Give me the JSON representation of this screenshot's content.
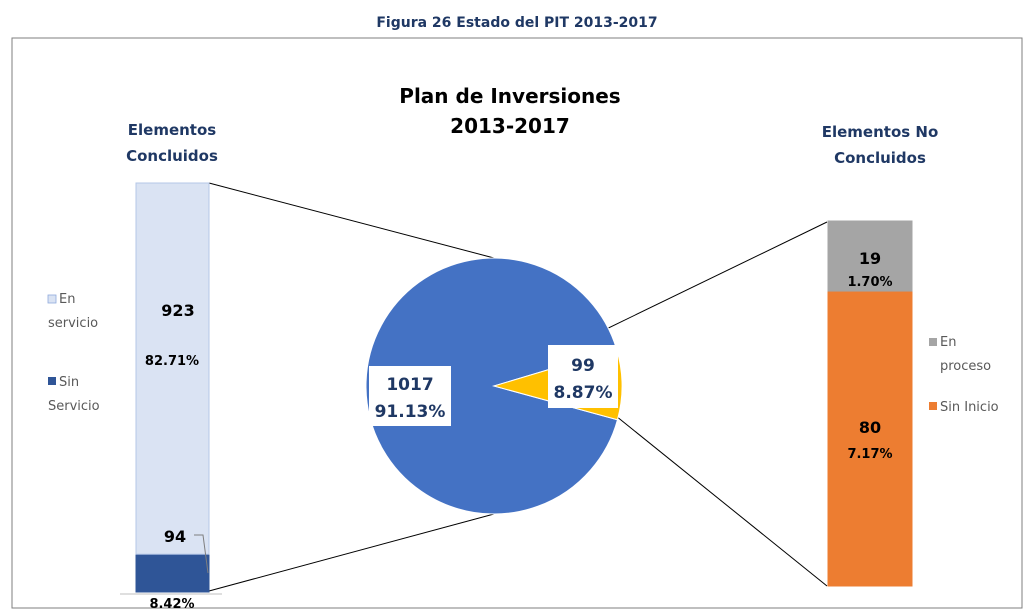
{
  "figure_caption": "Figura 26 Estado del PIT 2013-2017",
  "colors": {
    "pie_main": "#4472C4",
    "pie_slice": "#FFC000",
    "en_servicio": "#DAE3F3",
    "sin_servicio": "#2F5597",
    "en_proceso": "#A5A5A5",
    "sin_inicio": "#ED7D31",
    "title_text": "#000000",
    "sub_title_text": "#1F3864",
    "label_text": "#1F3864"
  },
  "chart_data": [
    {
      "type": "pie",
      "title_lines": [
        "Plan de Inversiones",
        "2013-2017"
      ],
      "slices": [
        {
          "value": 1017,
          "percent_label": "91.13%",
          "value_label": "1017",
          "color": "#4472C4"
        },
        {
          "value": 99,
          "percent_label": "8.87%",
          "value_label": "99",
          "color": "#FFC000"
        }
      ]
    },
    {
      "type": "bar",
      "stacked": true,
      "title_lines": [
        "Elementos",
        "Concluidos"
      ],
      "legend": [
        "En servicio",
        "Sin Servicio"
      ],
      "legend_lines": [
        [
          "En",
          "servicio"
        ],
        [
          "Sin",
          "Servicio"
        ]
      ],
      "segments": [
        {
          "name": "Sin Servicio",
          "value": 94,
          "value_label": "94",
          "percent_label": "8.42%",
          "color": "#2F5597"
        },
        {
          "name": "En servicio",
          "value": 923,
          "value_label": "923",
          "percent_label": "82.71%",
          "color": "#DAE3F3"
        }
      ]
    },
    {
      "type": "bar",
      "stacked": true,
      "title_lines": [
        "Elementos No",
        "Concluidos"
      ],
      "legend": [
        "En proceso",
        "Sin Inicio"
      ],
      "legend_lines": [
        [
          "En",
          "proceso"
        ],
        [
          "Sin Inicio"
        ]
      ],
      "segments": [
        {
          "name": "Sin Inicio",
          "value": 80,
          "value_label": "80",
          "percent_label": "7.17%",
          "color": "#ED7D31"
        },
        {
          "name": "En proceso",
          "value": 19,
          "value_label": "19",
          "percent_label": "1.70%",
          "color": "#A5A5A5"
        }
      ]
    }
  ]
}
